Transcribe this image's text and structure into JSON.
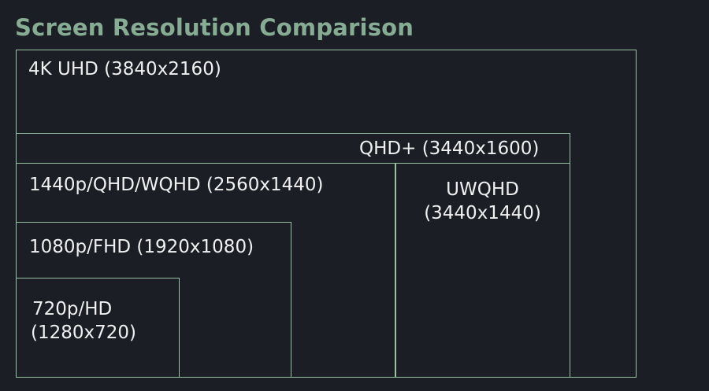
{
  "title": "Screen Resolution Comparison",
  "colors": {
    "background": "#1c1e26",
    "title": "#86ac94",
    "outline": "#9cc2a6",
    "label": "#f0f0f0"
  },
  "boxes": {
    "uhd4k": {
      "label": "4K UHD (3840x2160)"
    },
    "qhdplus": {
      "label": "QHD+ (3440x1600)"
    },
    "qhd1440": {
      "label": "1440p/QHD/WQHD (2560x1440)"
    },
    "uwqhd": {
      "line1": "UWQHD",
      "line2": "(3440x1440)"
    },
    "fhd1080": {
      "label": "1080p/FHD (1920x1080)"
    },
    "hd720": {
      "line1": "720p/HD",
      "line2": "(1280x720)"
    }
  }
}
